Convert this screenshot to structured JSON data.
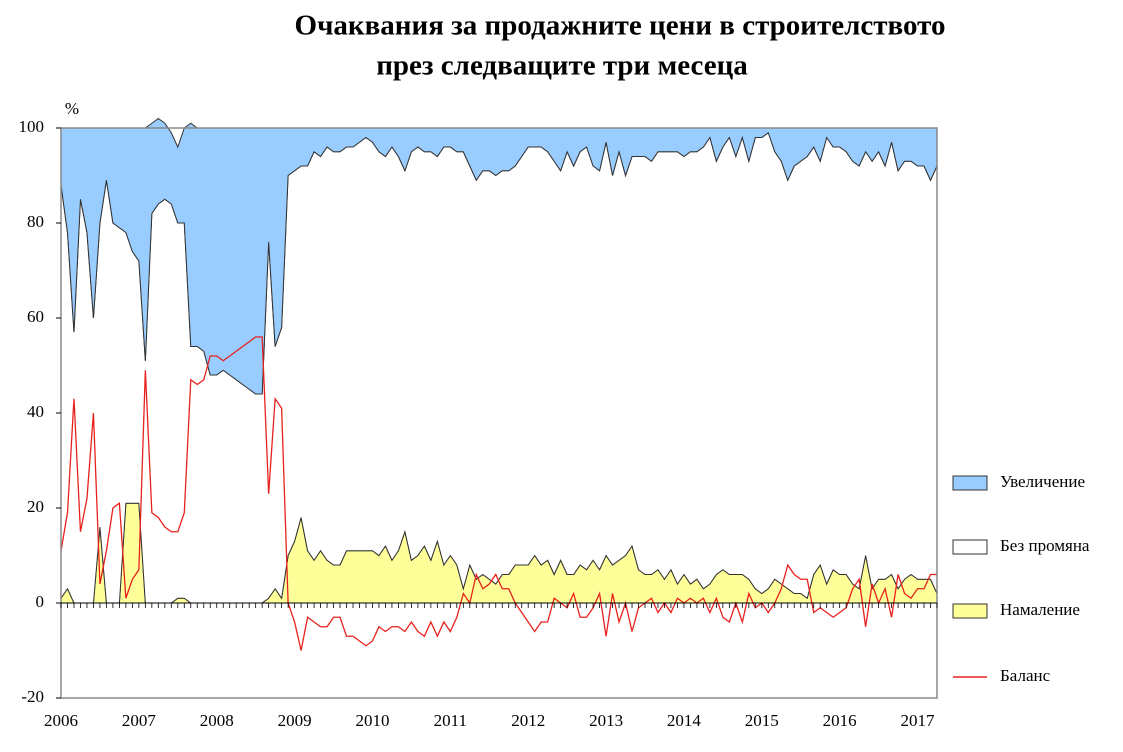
{
  "chart_data": {
    "type": "stacked_area",
    "title": "Очаквания за продажните цени в строителството",
    "subtitle": "през следващите три месеца",
    "y_label": "%",
    "categories": [
      "2006",
      null,
      null,
      null,
      null,
      null,
      null,
      null,
      null,
      null,
      null,
      null,
      "2007",
      null,
      null,
      null,
      null,
      null,
      null,
      null,
      null,
      null,
      null,
      null,
      "2008",
      null,
      null,
      null,
      null,
      null,
      null,
      null,
      null,
      null,
      null,
      null,
      "2009",
      null,
      null,
      null,
      null,
      null,
      null,
      null,
      null,
      null,
      null,
      null,
      "2010",
      null,
      null,
      null,
      null,
      null,
      null,
      null,
      null,
      null,
      null,
      null,
      "2011",
      null,
      null,
      null,
      null,
      null,
      null,
      null,
      null,
      null,
      null,
      null,
      "2012",
      null,
      null,
      null,
      null,
      null,
      null,
      null,
      null,
      null,
      null,
      null,
      "2013",
      null,
      null,
      null,
      null,
      null,
      null,
      null,
      null,
      null,
      null,
      null,
      "2014",
      null,
      null,
      null,
      null,
      null,
      null,
      null,
      null,
      null,
      null,
      null,
      "2015",
      null,
      null,
      null,
      null,
      null,
      null,
      null,
      null,
      null,
      null,
      null,
      "2016",
      null,
      null,
      null,
      null,
      null,
      null,
      null,
      null,
      null,
      null,
      null,
      "2017",
      null,
      null,
      null
    ],
    "series": [
      {
        "name": "Увеличение",
        "color": "#99ccff",
        "kind": "area",
        "values": [
          12,
          22,
          43,
          15,
          22,
          40,
          20,
          11,
          20,
          21,
          22,
          26,
          28,
          49,
          19,
          18,
          16,
          15,
          16,
          20,
          47,
          46,
          47,
          52,
          52,
          51,
          52,
          53,
          54,
          55,
          56,
          56,
          24,
          46,
          42,
          10,
          9,
          8,
          8,
          5,
          6,
          4,
          5,
          5,
          4,
          4,
          3,
          2,
          3,
          5,
          6,
          4,
          6,
          9,
          5,
          4,
          5,
          5,
          6,
          4,
          4,
          5,
          5,
          8,
          11,
          9,
          9,
          10,
          9,
          9,
          8,
          6,
          4,
          4,
          4,
          5,
          7,
          9,
          5,
          8,
          5,
          4,
          8,
          9,
          3,
          10,
          5,
          10,
          6,
          6,
          6,
          7,
          5,
          5,
          5,
          5,
          6,
          5,
          5,
          4,
          2,
          7,
          4,
          2,
          6,
          2,
          7,
          2,
          2,
          1,
          5,
          7,
          11,
          8,
          7,
          6,
          4,
          7,
          2,
          4,
          4,
          5,
          7,
          8,
          5,
          7,
          5,
          8,
          3,
          9,
          7,
          7,
          8,
          8,
          11,
          8
        ]
      },
      {
        "name": "Без промяна",
        "color": "#ffffff",
        "kind": "area",
        "values": [
          87,
          75,
          57,
          85,
          78,
          60,
          64,
          89,
          80,
          79,
          57,
          53,
          51,
          51,
          82,
          84,
          85,
          84,
          79,
          79,
          54,
          54,
          53,
          48,
          48,
          49,
          48,
          47,
          46,
          45,
          44,
          44,
          75,
          51,
          57,
          80,
          78,
          74,
          81,
          86,
          83,
          87,
          87,
          87,
          85,
          85,
          86,
          87,
          86,
          85,
          82,
          87,
          83,
          76,
          86,
          86,
          83,
          86,
          81,
          88,
          86,
          87,
          92,
          84,
          84,
          85,
          86,
          86,
          85,
          85,
          84,
          86,
          88,
          86,
          88,
          86,
          87,
          82,
          89,
          86,
          87,
          89,
          83,
          84,
          87,
          82,
          86,
          80,
          82,
          87,
          88,
          87,
          88,
          90,
          88,
          91,
          88,
          91,
          90,
          93,
          94,
          87,
          89,
          92,
          88,
          92,
          88,
          95,
          96,
          96,
          90,
          89,
          86,
          90,
          91,
          93,
          90,
          85,
          94,
          89,
          90,
          89,
          89,
          89,
          85,
          90,
          90,
          87,
          91,
          88,
          88,
          87,
          87,
          87,
          84,
          90
        ]
      },
      {
        "name": "Намаление",
        "color": "#ffff99",
        "kind": "area",
        "values": [
          1,
          3,
          0,
          0,
          0,
          0,
          16,
          0,
          0,
          0,
          21,
          21,
          21,
          0,
          0,
          0,
          0,
          0,
          1,
          1,
          0,
          0,
          0,
          0,
          0,
          0,
          0,
          0,
          0,
          0,
          0,
          0,
          1,
          3,
          1,
          10,
          13,
          18,
          11,
          9,
          11,
          9,
          8,
          8,
          11,
          11,
          11,
          11,
          11,
          10,
          12,
          9,
          11,
          15,
          9,
          10,
          12,
          9,
          13,
          8,
          10,
          8,
          3,
          8,
          5,
          6,
          5,
          4,
          6,
          6,
          8,
          8,
          8,
          10,
          8,
          9,
          6,
          9,
          6,
          6,
          8,
          7,
          9,
          7,
          10,
          8,
          9,
          10,
          12,
          7,
          6,
          6,
          7,
          5,
          7,
          4,
          6,
          4,
          5,
          3,
          4,
          6,
          7,
          6,
          6,
          6,
          5,
          3,
          2,
          3,
          5,
          4,
          3,
          2,
          2,
          1,
          6,
          8,
          4,
          7,
          6,
          6,
          4,
          3,
          10,
          3,
          5,
          5,
          6,
          3,
          5,
          6,
          5,
          5,
          5,
          2
        ]
      },
      {
        "name": "Баланс",
        "color": "#e8211d",
        "kind": "line",
        "values": [
          11,
          19,
          43,
          15,
          22,
          40,
          4,
          11,
          20,
          21,
          1,
          5,
          7,
          49,
          19,
          18,
          16,
          15,
          15,
          19,
          47,
          46,
          47,
          52,
          52,
          51,
          52,
          53,
          54,
          55,
          56,
          56,
          23,
          43,
          41,
          0,
          -4,
          -10,
          -3,
          -4,
          -5,
          -5,
          -3,
          -3,
          -7,
          -7,
          -8,
          -9,
          -8,
          -5,
          -6,
          -5,
          -5,
          -6,
          -4,
          -6,
          -7,
          -4,
          -7,
          -4,
          -6,
          -3,
          2,
          0,
          6,
          3,
          4,
          6,
          3,
          3,
          0,
          -2,
          -4,
          -6,
          -4,
          -4,
          1,
          0,
          -1,
          2,
          -3,
          -3,
          -1,
          2,
          -7,
          2,
          -4,
          0,
          -6,
          -1,
          0,
          1,
          -2,
          0,
          -2,
          1,
          0,
          1,
          0,
          1,
          -2,
          1,
          -3,
          -4,
          0,
          -4,
          2,
          -1,
          0,
          -2,
          0,
          3,
          8,
          6,
          5,
          5,
          -2,
          -1,
          -2,
          -3,
          -2,
          -1,
          3,
          5,
          -5,
          4,
          0,
          3,
          -3,
          6,
          2,
          1,
          3,
          3,
          6,
          6
        ]
      }
    ],
    "ylim": [
      -20,
      100
    ],
    "yticks": [
      -20,
      0,
      20,
      40,
      60,
      80,
      100
    ],
    "grid": false,
    "legend": "right"
  }
}
